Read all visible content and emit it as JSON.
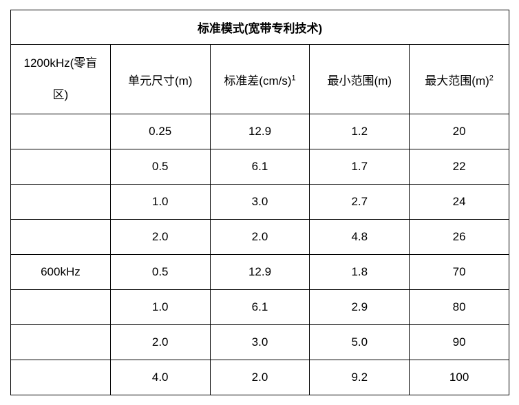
{
  "table": {
    "title": "标准模式(宽带专利技术)",
    "columns": [
      {
        "label": "1200kHz(零盲区)",
        "sup": ""
      },
      {
        "label": "单元尺寸(m)",
        "sup": ""
      },
      {
        "label": "标准差(cm/s)",
        "sup": "1"
      },
      {
        "label": "最小范围(m)",
        "sup": ""
      },
      {
        "label": "最大范围(m)",
        "sup": "2"
      }
    ],
    "rows": [
      [
        "",
        "0.25",
        "12.9",
        "1.2",
        "20"
      ],
      [
        "",
        "0.5",
        "6.1",
        "1.7",
        "22"
      ],
      [
        "",
        "1.0",
        "3.0",
        "2.7",
        "24"
      ],
      [
        "",
        "2.0",
        "2.0",
        "4.8",
        "26"
      ],
      [
        "600kHz",
        "0.5",
        "12.9",
        "1.8",
        "70"
      ],
      [
        "",
        "1.0",
        "6.1",
        "2.9",
        "80"
      ],
      [
        "",
        "2.0",
        "3.0",
        "5.0",
        "90"
      ],
      [
        "",
        "4.0",
        "2.0",
        "9.2",
        "100"
      ]
    ]
  }
}
